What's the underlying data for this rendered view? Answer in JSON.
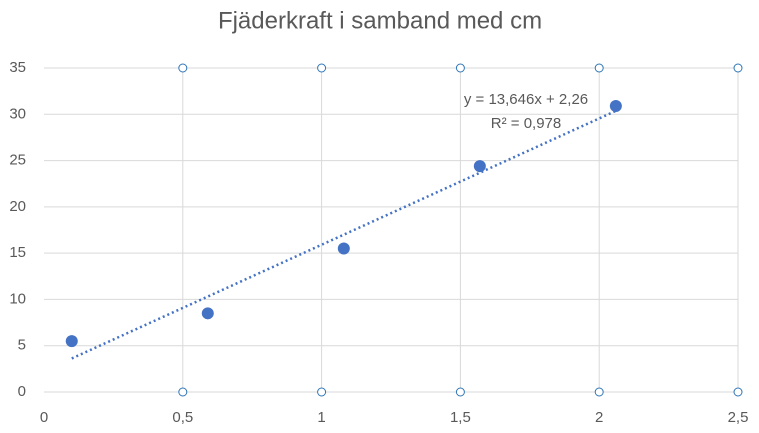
{
  "chart_data": {
    "type": "scatter",
    "title": "Fjäderkraft i samband med cm",
    "x": [
      0.1,
      0.59,
      1.08,
      1.57,
      2.06
    ],
    "series": [
      {
        "color": "#4472c4",
        "values": [
          5.5,
          8.5,
          15.5,
          24.4,
          30.9
        ]
      }
    ],
    "trendline": {
      "slope": 13.646,
      "intercept": 2.26,
      "equation": "y = 13,646x + 2,26",
      "r2": 0.978,
      "r2_label": "R² = 0,978"
    },
    "xlim": [
      0,
      2.5
    ],
    "xticks": [
      0,
      {
        "value": 0.5,
        "label": "0,5"
      },
      1,
      {
        "value": 1.5,
        "label": "1,5"
      },
      2,
      {
        "value": 2.5,
        "label": "2,5"
      }
    ],
    "ylim": [
      0,
      35
    ],
    "yticks": [
      0,
      5,
      10,
      15,
      20,
      25,
      30,
      35
    ],
    "grid": true
  }
}
